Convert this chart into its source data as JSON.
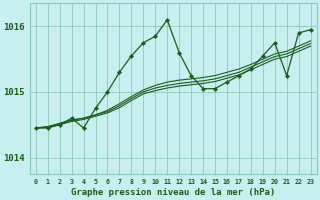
{
  "title": "Graphe pression niveau de la mer (hPa)",
  "background_color": "#c8eef0",
  "grid_color": "#8ec8b8",
  "line_color": "#1a5c1a",
  "marker_color": "#1a5c1a",
  "x_values": [
    0,
    1,
    2,
    3,
    4,
    5,
    6,
    7,
    8,
    9,
    10,
    11,
    12,
    13,
    14,
    15,
    16,
    17,
    18,
    19,
    20,
    21,
    22,
    23
  ],
  "series_main": [
    1014.45,
    1014.45,
    1014.5,
    1014.6,
    1014.45,
    1014.75,
    1015.0,
    1015.3,
    1015.55,
    1015.75,
    1015.85,
    1016.1,
    1015.6,
    1015.25,
    1015.05,
    1015.05,
    1015.15,
    1015.25,
    1015.35,
    1015.55,
    1015.75,
    1015.25,
    1015.9,
    1015.95
  ],
  "series_smooth1": [
    1014.45,
    1014.47,
    1014.52,
    1014.57,
    1014.6,
    1014.65,
    1014.72,
    1014.82,
    1014.93,
    1015.03,
    1015.1,
    1015.15,
    1015.18,
    1015.2,
    1015.22,
    1015.25,
    1015.3,
    1015.35,
    1015.42,
    1015.5,
    1015.58,
    1015.62,
    1015.7,
    1015.78
  ],
  "series_smooth2": [
    1014.45,
    1014.47,
    1014.52,
    1014.57,
    1014.6,
    1014.65,
    1014.7,
    1014.79,
    1014.9,
    1015.0,
    1015.06,
    1015.1,
    1015.13,
    1015.15,
    1015.17,
    1015.2,
    1015.25,
    1015.3,
    1015.38,
    1015.46,
    1015.54,
    1015.58,
    1015.66,
    1015.74
  ],
  "series_smooth3": [
    1014.45,
    1014.46,
    1014.5,
    1014.55,
    1014.58,
    1014.63,
    1014.68,
    1014.76,
    1014.87,
    1014.97,
    1015.02,
    1015.06,
    1015.09,
    1015.11,
    1015.13,
    1015.16,
    1015.21,
    1015.26,
    1015.34,
    1015.42,
    1015.5,
    1015.54,
    1015.62,
    1015.7
  ],
  "ylim": [
    1013.75,
    1016.35
  ],
  "yticks": [
    1014,
    1015,
    1016
  ],
  "xtick_labels": [
    "0",
    "1",
    "2",
    "3",
    "4",
    "5",
    "6",
    "7",
    "8",
    "9",
    "10",
    "11",
    "12",
    "13",
    "14",
    "15",
    "16",
    "17",
    "18",
    "19",
    "20",
    "21",
    "22",
    "23"
  ]
}
